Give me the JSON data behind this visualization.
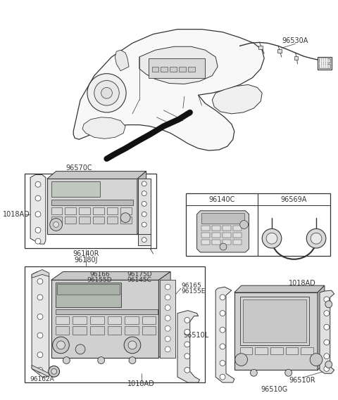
{
  "background_color": "#ffffff",
  "fig_width": 4.8,
  "fig_height": 5.69,
  "dpi": 100,
  "line_color": "#333333",
  "text_color": "#333333",
  "lw": 0.7,
  "sections": {
    "top_label": "96530A",
    "box1_label_top": "96570C",
    "box1_label_bot1": "96140R",
    "box1_label_bot2": "96180J",
    "box1_label_left": "1018AD",
    "box2_label1": "96140C",
    "box2_label2": "96569A",
    "box3_labels": [
      "96166",
      "96155D",
      "96175D",
      "96145C",
      "96165",
      "96155E",
      "96162A",
      "1018AD"
    ],
    "box4_labels": [
      "96510L",
      "1018AD",
      "96510R",
      "96510G"
    ]
  }
}
